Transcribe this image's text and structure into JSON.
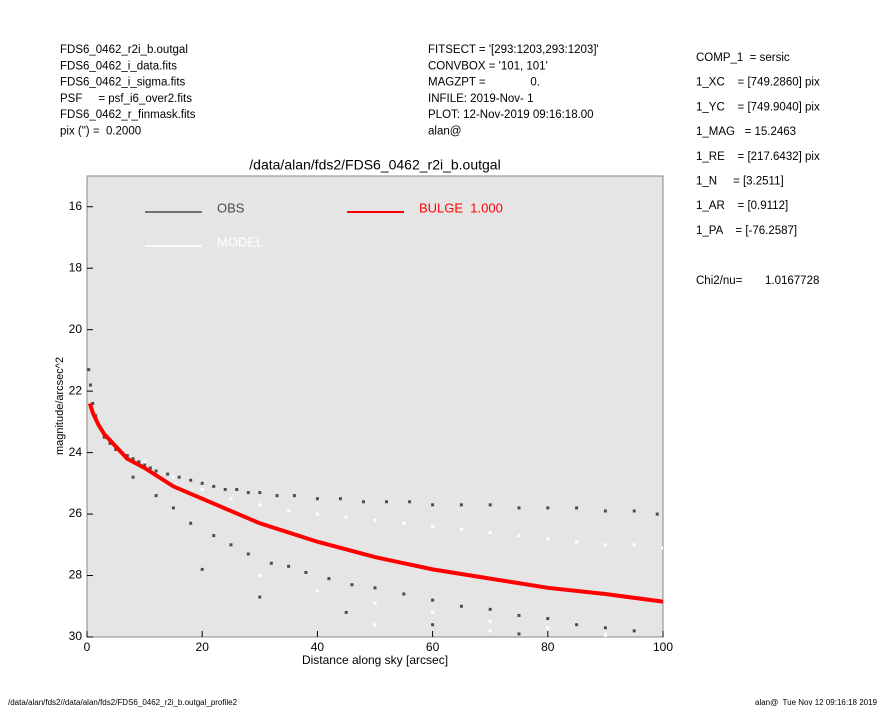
{
  "header": {
    "left": [
      "FDS6_0462_r2i_b.outgal",
      "FDS6_0462_i_data.fits",
      "FDS6_0462_i_sigma.fits",
      "PSF     = psf_i6_over2.fits",
      "FDS6_0462_r_finmask.fits",
      "pix (\") =  0.2000"
    ],
    "middle": [
      "FITSECT = '[293:1203,293:1203]'",
      "CONVBOX = '101, 101'",
      "MAGZPT =              0.",
      "INFILE: 2019-Nov- 1",
      "PLOT: 12-Nov-2019 09:16:18.00",
      "alan@"
    ],
    "right": [
      "COMP_1  = sersic",
      "1_XC    = [749.2860] pix",
      "1_YC    = [749.9040] pix",
      "1_MAG   = 15.2463",
      "1_RE    = [217.6432] pix",
      "1_N     = [3.2511]",
      "1_AR    = [0.9112]",
      "1_PA    = [-76.2587]"
    ],
    "chi2_label": "Chi2/nu=",
    "chi2_value": "1.0167728"
  },
  "footer": {
    "left": "/data/alan/fds2//data/alan/fds2/FDS6_0462_r2i_b.outgal_profile2",
    "right": "alan@  Tue Nov 12 09:16:18 2019"
  },
  "chart_data": {
    "type": "scatter",
    "title": "/data/alan/fds2/FDS6_0462_r2i_b.outgal",
    "x_label": "Distance along sky [arcsec]",
    "y_label": "magnitude/arcsec^2",
    "xlim": [
      0,
      100
    ],
    "xticks": [
      0,
      20,
      40,
      60,
      80,
      100
    ],
    "ylim": [
      15,
      30
    ],
    "yticks": [
      16,
      18,
      20,
      22,
      24,
      26,
      28,
      30
    ],
    "y_inverted": true,
    "background": "#e5e5e5",
    "series": [
      {
        "name": "OBS",
        "color": "#4d4d4d",
        "kind": "points",
        "x": [
          0.3,
          0.6,
          1,
          1.5,
          2,
          3,
          4,
          5,
          6,
          7,
          8,
          9,
          10,
          11,
          12,
          14,
          16,
          18,
          20,
          22,
          24,
          26,
          28,
          30,
          33,
          36,
          40,
          44,
          48,
          52,
          56,
          60,
          65,
          70,
          75,
          80,
          85,
          90,
          95,
          99,
          8,
          12,
          15,
          18,
          22,
          25,
          28,
          32,
          35,
          38,
          42,
          46,
          50,
          55,
          60,
          65,
          70,
          75,
          80,
          85,
          90,
          95,
          20,
          30,
          45,
          60,
          75,
          90
        ],
        "values": [
          21.3,
          21.8,
          22.4,
          22.8,
          23.1,
          23.5,
          23.7,
          23.9,
          24.0,
          24.1,
          24.2,
          24.3,
          24.4,
          24.5,
          24.6,
          24.7,
          24.8,
          24.9,
          25.0,
          25.1,
          25.2,
          25.2,
          25.3,
          25.3,
          25.4,
          25.4,
          25.5,
          25.5,
          25.6,
          25.6,
          25.6,
          25.7,
          25.7,
          25.7,
          25.8,
          25.8,
          25.8,
          25.9,
          25.9,
          26.0,
          24.8,
          25.4,
          25.8,
          26.3,
          26.7,
          27.0,
          27.3,
          27.6,
          27.7,
          27.9,
          28.1,
          28.3,
          28.4,
          28.6,
          28.8,
          29.0,
          29.1,
          29.3,
          29.4,
          29.6,
          29.7,
          29.8,
          27.8,
          28.7,
          29.2,
          29.6,
          29.9,
          29.9
        ]
      },
      {
        "name": "MODEL",
        "color": "#ffffff",
        "kind": "points",
        "x": [
          10,
          15,
          20,
          25,
          30,
          35,
          40,
          45,
          50,
          55,
          60,
          65,
          70,
          75,
          80,
          85,
          90,
          95,
          100,
          30,
          40,
          50,
          60,
          70,
          80,
          90,
          100,
          50,
          70,
          90
        ],
        "values": [
          24.3,
          24.8,
          25.2,
          25.5,
          25.7,
          25.9,
          26.0,
          26.1,
          26.2,
          26.3,
          26.4,
          26.5,
          26.6,
          26.7,
          26.8,
          26.9,
          27.0,
          27.0,
          27.1,
          28.0,
          28.5,
          28.9,
          29.2,
          29.5,
          29.7,
          29.9,
          29.9,
          29.6,
          29.8,
          29.95
        ]
      },
      {
        "name": "BULGE  1.000",
        "color": "#ff0000",
        "kind": "line",
        "x": [
          0.5,
          1,
          2,
          3,
          5,
          7,
          10,
          15,
          20,
          30,
          40,
          50,
          60,
          70,
          80,
          90,
          100
        ],
        "values": [
          22.4,
          22.7,
          23.1,
          23.4,
          23.8,
          24.2,
          24.5,
          25.1,
          25.5,
          26.3,
          26.9,
          27.4,
          27.8,
          28.1,
          28.4,
          28.6,
          28.85
        ]
      }
    ]
  }
}
